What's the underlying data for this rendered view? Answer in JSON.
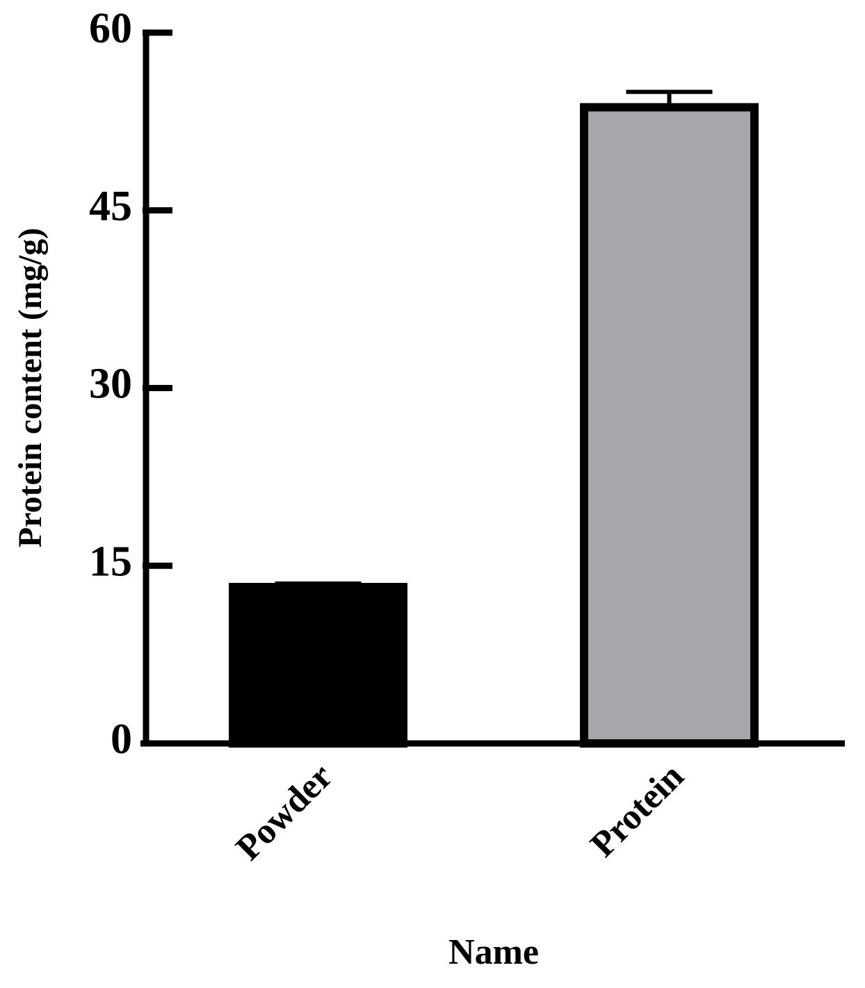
{
  "chart_data": {
    "type": "bar",
    "x_label": "Name",
    "y_label": "Protein content (mg/g)",
    "categories": [
      "Powder",
      "Protein"
    ],
    "values": [
      13.2,
      53.7
    ],
    "errors": [
      0.3,
      1.3
    ],
    "colors": [
      "#000000",
      "#a6a7aa"
    ],
    "ylim": [
      0,
      60
    ],
    "yticks": [
      0,
      15,
      30,
      45,
      60
    ],
    "grid": false
  }
}
